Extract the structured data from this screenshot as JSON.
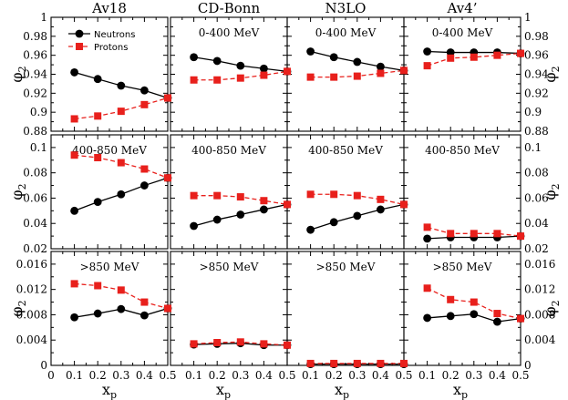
{
  "chart_data": {
    "type": "line",
    "columns": [
      "Av18",
      "CD-Bonn",
      "N3LO",
      "Av4’"
    ],
    "rows": [
      {
        "label": "0-400 MeV",
        "ylim": [
          0.88,
          1.0
        ],
        "yticks": [
          0.88,
          0.9,
          0.92,
          0.94,
          0.96,
          0.98,
          1.0
        ],
        "ytick_labels": [
          "0.88",
          "0.9",
          "0.92",
          "0.94",
          "0.96",
          "0.98",
          "1"
        ]
      },
      {
        "label": "400-850 MeV",
        "ylim": [
          0.02,
          0.11
        ],
        "yticks": [
          0.02,
          0.04,
          0.06,
          0.08,
          0.1
        ],
        "ytick_labels": [
          "0.02",
          "0.04",
          "0.06",
          "0.08",
          "0.1"
        ]
      },
      {
        "label": ">850 MeV",
        "ylim": [
          0,
          0.018
        ],
        "yticks": [
          0,
          0.004,
          0.008,
          0.012,
          0.016
        ],
        "ytick_labels": [
          "0",
          "0.004",
          "0.008",
          "0.012",
          "0.016"
        ]
      }
    ],
    "x": [
      0.1,
      0.2,
      0.3,
      0.4,
      0.5
    ],
    "xlim": [
      0,
      0.5
    ],
    "xticks_first": [
      "0",
      "0.1",
      "0.2",
      "0.3",
      "0.4",
      "0.5"
    ],
    "xticks_other": [
      "0.1",
      "0.2",
      "0.3",
      "0.4",
      "0.5"
    ],
    "xlabel": {
      "main": "x",
      "sub": "p"
    },
    "ylabel": {
      "main": "φ",
      "sub": "2"
    },
    "legend": [
      {
        "name": "Neutrons",
        "color": "#000000",
        "marker": "circle",
        "dash": "solid"
      },
      {
        "name": "Protons",
        "color": "#e8201c",
        "marker": "square",
        "dash": "dashed"
      }
    ],
    "panels": [
      {
        "row": 0,
        "col": 0,
        "neutrons": [
          0.942,
          0.935,
          0.928,
          0.923,
          0.915
        ],
        "protons": [
          0.893,
          0.896,
          0.901,
          0.908,
          0.915
        ]
      },
      {
        "row": 0,
        "col": 1,
        "neutrons": [
          0.958,
          0.954,
          0.949,
          0.946,
          0.943
        ],
        "protons": [
          0.934,
          0.934,
          0.936,
          0.939,
          0.943
        ]
      },
      {
        "row": 0,
        "col": 2,
        "neutrons": [
          0.964,
          0.958,
          0.953,
          0.948,
          0.944
        ],
        "protons": [
          0.937,
          0.937,
          0.938,
          0.941,
          0.944
        ]
      },
      {
        "row": 0,
        "col": 3,
        "neutrons": [
          0.964,
          0.963,
          0.963,
          0.963,
          0.962
        ],
        "protons": [
          0.949,
          0.957,
          0.958,
          0.96,
          0.962
        ]
      },
      {
        "row": 1,
        "col": 0,
        "neutrons": [
          0.05,
          0.057,
          0.063,
          0.07,
          0.076
        ],
        "protons": [
          0.094,
          0.092,
          0.088,
          0.083,
          0.076
        ]
      },
      {
        "row": 1,
        "col": 1,
        "neutrons": [
          0.038,
          0.043,
          0.047,
          0.051,
          0.055
        ],
        "protons": [
          0.062,
          0.062,
          0.061,
          0.058,
          0.055
        ]
      },
      {
        "row": 1,
        "col": 2,
        "neutrons": [
          0.035,
          0.041,
          0.046,
          0.051,
          0.055
        ],
        "protons": [
          0.063,
          0.063,
          0.062,
          0.059,
          0.055
        ]
      },
      {
        "row": 1,
        "col": 3,
        "neutrons": [
          0.028,
          0.029,
          0.029,
          0.029,
          0.03
        ],
        "protons": [
          0.037,
          0.032,
          0.032,
          0.032,
          0.03
        ]
      },
      {
        "row": 2,
        "col": 0,
        "neutrons": [
          0.0076,
          0.0082,
          0.0089,
          0.0079,
          0.009
        ],
        "protons": [
          0.0129,
          0.0126,
          0.0119,
          0.01,
          0.009
        ]
      },
      {
        "row": 2,
        "col": 1,
        "neutrons": [
          0.0033,
          0.0034,
          0.0035,
          0.0032,
          0.0032
        ],
        "protons": [
          0.0034,
          0.0036,
          0.0037,
          0.0034,
          0.0032
        ]
      },
      {
        "row": 2,
        "col": 2,
        "neutrons": [
          0.0002,
          0.0002,
          0.0002,
          0.0002,
          0.0002
        ],
        "protons": [
          0.0003,
          0.0003,
          0.0003,
          0.0003,
          0.0003
        ]
      },
      {
        "row": 2,
        "col": 3,
        "neutrons": [
          0.0075,
          0.0078,
          0.0081,
          0.0069,
          0.0074
        ],
        "protons": [
          0.0122,
          0.0104,
          0.01,
          0.0082,
          0.0074
        ]
      }
    ]
  }
}
